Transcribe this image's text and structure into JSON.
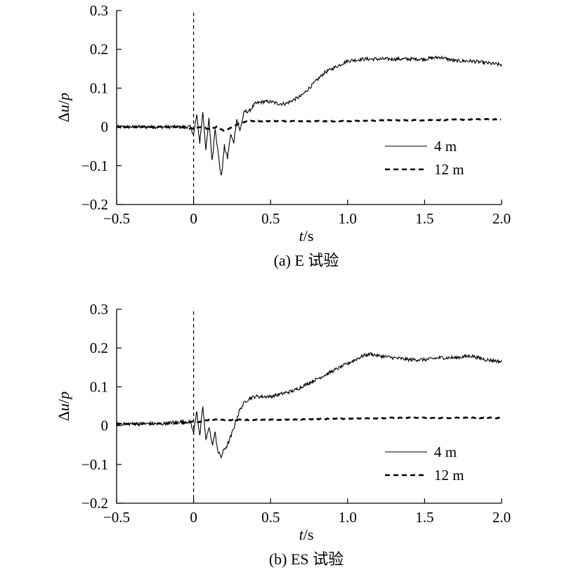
{
  "chart_data": [
    {
      "type": "line",
      "caption": "(a) E 试验",
      "xlabel_italic": "t",
      "xlabel_unit": "/s",
      "ylabel_delta": "Δ",
      "ylabel_u": "u",
      "ylabel_slash": "/",
      "ylabel_p": "p",
      "xlim": [
        -0.5,
        2.0
      ],
      "ylim": [
        -0.2,
        0.3
      ],
      "xticks": [
        -0.5,
        0,
        0.5,
        1.0,
        1.5,
        2.0
      ],
      "xtick_labels": [
        "−0.5",
        "0",
        "0.5",
        "1.0",
        "1.5",
        "2.0"
      ],
      "yticks": [
        -0.2,
        -0.1,
        0,
        0.1,
        0.2,
        0.3
      ],
      "ytick_labels": [
        "−0.2",
        "−0.1",
        "0",
        "0.1",
        "0.2",
        "0.3"
      ],
      "vline_x": 0,
      "legend_position": "bottom-right",
      "series": [
        {
          "name": "4 m",
          "style": "solid",
          "x": [
            -0.5,
            -0.4,
            -0.3,
            -0.2,
            -0.1,
            -0.02,
            0.0,
            0.02,
            0.04,
            0.06,
            0.08,
            0.1,
            0.12,
            0.14,
            0.16,
            0.18,
            0.2,
            0.22,
            0.24,
            0.26,
            0.28,
            0.3,
            0.33,
            0.36,
            0.4,
            0.45,
            0.5,
            0.55,
            0.6,
            0.65,
            0.7,
            0.75,
            0.8,
            0.85,
            0.9,
            0.95,
            1.0,
            1.1,
            1.2,
            1.3,
            1.4,
            1.5,
            1.6,
            1.7,
            1.8,
            1.9,
            2.0
          ],
          "y": [
            0.0,
            0.0,
            0.0,
            0.0,
            0.0,
            0.0,
            -0.02,
            0.03,
            -0.04,
            0.04,
            -0.06,
            0.02,
            -0.09,
            0.0,
            -0.07,
            -0.13,
            -0.05,
            -0.08,
            -0.02,
            -0.04,
            0.02,
            -0.01,
            0.04,
            0.04,
            0.06,
            0.065,
            0.065,
            0.06,
            0.06,
            0.07,
            0.08,
            0.1,
            0.12,
            0.14,
            0.15,
            0.16,
            0.17,
            0.175,
            0.175,
            0.175,
            0.175,
            0.175,
            0.18,
            0.17,
            0.17,
            0.165,
            0.16
          ]
        },
        {
          "name": "12 m",
          "style": "dashed",
          "x": [
            -0.5,
            -0.3,
            -0.1,
            0.0,
            0.05,
            0.1,
            0.15,
            0.2,
            0.25,
            0.3,
            0.35,
            0.4,
            0.5,
            0.7,
            1.0,
            1.3,
            1.6,
            2.0
          ],
          "y": [
            0.0,
            0.0,
            0.0,
            -0.005,
            0.0,
            -0.005,
            0.0,
            -0.01,
            0.0,
            0.01,
            0.015,
            0.015,
            0.015,
            0.015,
            0.015,
            0.017,
            0.018,
            0.02
          ]
        }
      ]
    },
    {
      "type": "line",
      "caption": "(b) ES 试验",
      "xlabel_italic": "t",
      "xlabel_unit": "/s",
      "ylabel_delta": "Δ",
      "ylabel_u": "u",
      "ylabel_slash": "/",
      "ylabel_p": "p",
      "xlim": [
        -0.5,
        2.0
      ],
      "ylim": [
        -0.2,
        0.3
      ],
      "xticks": [
        -0.5,
        0,
        0.5,
        1.0,
        1.5,
        2.0
      ],
      "xtick_labels": [
        "−0.5",
        "0",
        "0.5",
        "1.0",
        "1.5",
        "2.0"
      ],
      "yticks": [
        -0.2,
        -0.1,
        0,
        0.1,
        0.2,
        0.3
      ],
      "ytick_labels": [
        "−0.2",
        "−0.1",
        "0",
        "0.1",
        "0.2",
        "0.3"
      ],
      "vline_x": 0,
      "legend_position": "bottom-right",
      "series": [
        {
          "name": "4 m",
          "style": "solid",
          "x": [
            -0.5,
            -0.4,
            -0.3,
            -0.2,
            -0.1,
            -0.02,
            0.0,
            0.02,
            0.04,
            0.06,
            0.08,
            0.1,
            0.12,
            0.14,
            0.16,
            0.18,
            0.2,
            0.22,
            0.25,
            0.28,
            0.3,
            0.33,
            0.36,
            0.4,
            0.45,
            0.5,
            0.55,
            0.6,
            0.65,
            0.7,
            0.75,
            0.8,
            0.85,
            0.9,
            0.95,
            1.0,
            1.05,
            1.1,
            1.15,
            1.2,
            1.3,
            1.4,
            1.5,
            1.6,
            1.7,
            1.8,
            1.9,
            2.0
          ],
          "y": [
            0.005,
            0.005,
            0.005,
            0.005,
            0.01,
            0.01,
            -0.02,
            0.04,
            -0.03,
            0.05,
            -0.04,
            0.0,
            -0.05,
            -0.02,
            -0.07,
            -0.08,
            -0.06,
            -0.05,
            -0.02,
            0.02,
            0.04,
            0.06,
            0.07,
            0.075,
            0.075,
            0.075,
            0.08,
            0.085,
            0.09,
            0.1,
            0.11,
            0.12,
            0.13,
            0.14,
            0.15,
            0.16,
            0.17,
            0.18,
            0.185,
            0.18,
            0.175,
            0.17,
            0.17,
            0.175,
            0.175,
            0.18,
            0.17,
            0.165
          ]
        },
        {
          "name": "12 m",
          "style": "dashed",
          "x": [
            -0.5,
            -0.3,
            -0.1,
            0.0,
            0.05,
            0.1,
            0.2,
            0.3,
            0.4,
            0.6,
            0.8,
            1.0,
            1.3,
            1.6,
            2.0
          ],
          "y": [
            0.005,
            0.005,
            0.005,
            0.01,
            0.01,
            0.015,
            0.015,
            0.015,
            0.015,
            0.015,
            0.017,
            0.018,
            0.02,
            0.02,
            0.02
          ]
        }
      ]
    }
  ]
}
